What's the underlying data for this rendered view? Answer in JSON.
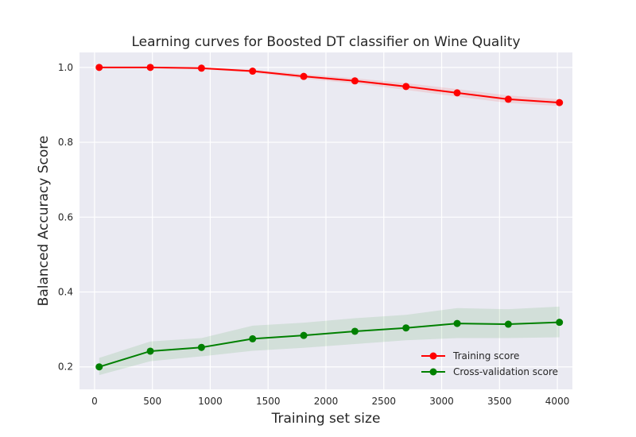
{
  "chart_data": {
    "type": "line",
    "title": "Learning curves for Boosted DT classifier on Wine Quality",
    "xlabel": "Training set size",
    "ylabel": "Balanced Accuracy Score",
    "xlim": [
      -130,
      4130
    ],
    "ylim": [
      0.14,
      1.04
    ],
    "xticks": [
      0,
      500,
      1000,
      1500,
      2000,
      2500,
      3000,
      3500,
      4000
    ],
    "yticks": [
      0.2,
      0.4,
      0.6,
      0.8,
      1.0
    ],
    "ytick_labels": [
      "0.2",
      "0.4",
      "0.6",
      "0.8",
      "1.0"
    ],
    "grid": true,
    "legend_position": "lower-right",
    "x": [
      40,
      482,
      924,
      1366,
      1808,
      2250,
      2692,
      3134,
      3576,
      4018
    ],
    "series": [
      {
        "name": "Training score",
        "color": "#ff0000",
        "values": [
          1.0,
          1.0,
          0.998,
          0.99,
          0.976,
          0.964,
          0.949,
          0.932,
          0.915,
          0.906
        ],
        "lower": [
          0.999,
          0.998,
          0.995,
          0.986,
          0.97,
          0.957,
          0.94,
          0.922,
          0.905,
          0.897
        ],
        "upper": [
          1.0,
          1.0,
          1.0,
          0.994,
          0.982,
          0.971,
          0.958,
          0.942,
          0.925,
          0.915
        ]
      },
      {
        "name": "Cross-validation score",
        "color": "#008000",
        "values": [
          0.2,
          0.242,
          0.252,
          0.275,
          0.284,
          0.295,
          0.304,
          0.316,
          0.314,
          0.319
        ],
        "lower": [
          0.178,
          0.215,
          0.228,
          0.243,
          0.251,
          0.261,
          0.271,
          0.277,
          0.277,
          0.279
        ],
        "upper": [
          0.224,
          0.268,
          0.277,
          0.31,
          0.318,
          0.33,
          0.339,
          0.357,
          0.354,
          0.361
        ]
      }
    ]
  }
}
